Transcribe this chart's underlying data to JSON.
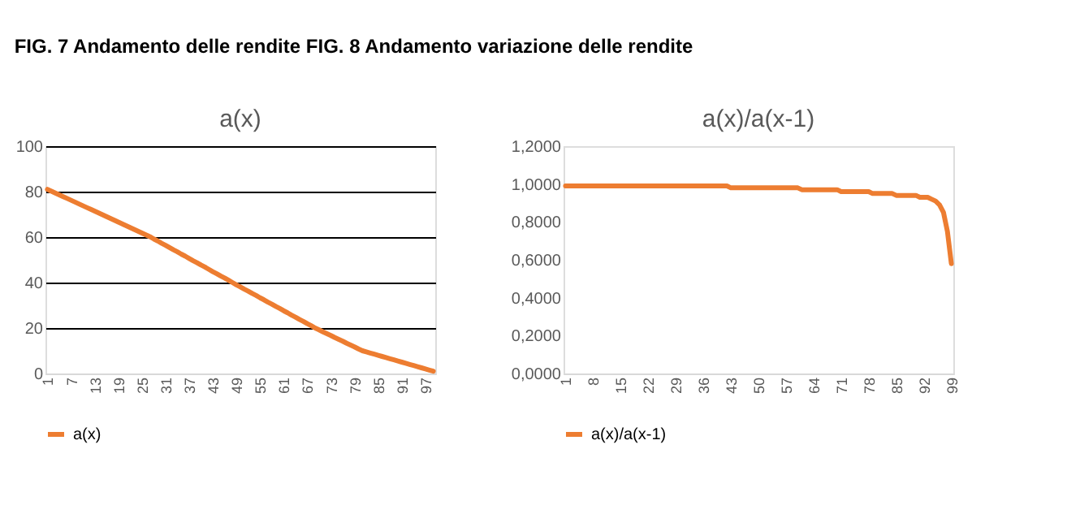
{
  "chart_data": [
    {
      "type": "line",
      "title": "a(x)",
      "annotations": [
        "FIG. 7 Andamento delle rendite FIG. 8 Andamento variazione delle rendite"
      ],
      "categories": [
        "1",
        null,
        null,
        null,
        null,
        null,
        "7",
        null,
        null,
        null,
        null,
        null,
        "13",
        null,
        null,
        null,
        null,
        null,
        "19",
        null,
        null,
        null,
        null,
        null,
        "25",
        null,
        null,
        null,
        null,
        null,
        "31",
        null,
        null,
        null,
        null,
        null,
        "37",
        null,
        null,
        null,
        null,
        null,
        "43",
        null,
        null,
        null,
        null,
        null,
        "49",
        null,
        null,
        null,
        null,
        null,
        "55",
        null,
        null,
        null,
        null,
        null,
        "61",
        null,
        null,
        null,
        null,
        null,
        "67",
        null,
        null,
        null,
        null,
        null,
        "73",
        null,
        null,
        null,
        null,
        null,
        "79",
        null,
        null,
        null,
        null,
        null,
        "85",
        null,
        null,
        null,
        null,
        null,
        "91",
        null,
        null,
        null,
        null,
        null,
        "97",
        null,
        null
      ],
      "series": [
        {
          "name": "a(x)",
          "color": "#ed7d31",
          "values": [
            81.0,
            80.2,
            79.4,
            78.6,
            77.8,
            77.0,
            76.2,
            75.4,
            74.6,
            73.8,
            73.0,
            72.2,
            71.4,
            70.6,
            69.8,
            69.0,
            68.2,
            67.4,
            66.6,
            65.8,
            65.0,
            64.2,
            63.4,
            62.6,
            61.8,
            61.0,
            60.2,
            59.2,
            58.3,
            57.3,
            56.4,
            55.4,
            54.4,
            53.5,
            52.5,
            51.6,
            50.6,
            49.6,
            48.7,
            47.7,
            46.8,
            45.8,
            44.8,
            43.9,
            42.9,
            42.0,
            41.0,
            40.0,
            39.0,
            38.1,
            37.1,
            36.2,
            35.2,
            34.3,
            33.3,
            32.4,
            31.4,
            30.5,
            29.5,
            28.6,
            27.6,
            26.7,
            25.7,
            24.8,
            23.8,
            22.9,
            21.9,
            21.0,
            20.0,
            19.2,
            18.3,
            17.5,
            16.7,
            15.8,
            15.0,
            14.2,
            13.3,
            12.5,
            11.7,
            10.8,
            10.0,
            9.5,
            9.0,
            8.5,
            8.0,
            7.5,
            7.0,
            6.5,
            6.0,
            5.5,
            5.0,
            4.5,
            4.0,
            3.5,
            3.0,
            2.5,
            2.0,
            1.5,
            1.0
          ]
        }
      ],
      "ylim": [
        0,
        100
      ],
      "yticks": [
        0,
        20,
        40,
        60,
        80,
        100
      ],
      "grid": "y",
      "legend": "bottom",
      "line_style": "solid"
    },
    {
      "type": "line",
      "title": "a(x)/a(x-1)",
      "categories": [
        "1",
        null,
        null,
        null,
        null,
        null,
        null,
        "8",
        null,
        null,
        null,
        null,
        null,
        null,
        "15",
        null,
        null,
        null,
        null,
        null,
        null,
        "22",
        null,
        null,
        null,
        null,
        null,
        null,
        "29",
        null,
        null,
        null,
        null,
        null,
        null,
        "36",
        null,
        null,
        null,
        null,
        null,
        null,
        "43",
        null,
        null,
        null,
        null,
        null,
        null,
        "50",
        null,
        null,
        null,
        null,
        null,
        null,
        "57",
        null,
        null,
        null,
        null,
        null,
        null,
        "64",
        null,
        null,
        null,
        null,
        null,
        null,
        "71",
        null,
        null,
        null,
        null,
        null,
        null,
        "78",
        null,
        null,
        null,
        null,
        null,
        null,
        "85",
        null,
        null,
        null,
        null,
        null,
        null,
        "92",
        null,
        null,
        null,
        null,
        null,
        null,
        "99"
      ],
      "series": [
        {
          "name": "a(x)/a(x-1)",
          "color": "#ed7d31",
          "values": [
            0.99,
            0.99,
            0.99,
            0.99,
            0.99,
            0.99,
            0.99,
            0.99,
            0.99,
            0.99,
            0.99,
            0.99,
            0.99,
            0.99,
            0.99,
            0.99,
            0.99,
            0.99,
            0.99,
            0.99,
            0.99,
            0.99,
            0.99,
            0.99,
            0.99,
            0.99,
            0.99,
            0.99,
            0.99,
            0.99,
            0.99,
            0.99,
            0.99,
            0.99,
            0.99,
            0.99,
            0.99,
            0.99,
            0.99,
            0.99,
            0.99,
            0.99,
            0.98,
            0.98,
            0.98,
            0.98,
            0.98,
            0.98,
            0.98,
            0.98,
            0.98,
            0.98,
            0.98,
            0.98,
            0.98,
            0.98,
            0.98,
            0.98,
            0.98,
            0.98,
            0.97,
            0.97,
            0.97,
            0.97,
            0.97,
            0.97,
            0.97,
            0.97,
            0.97,
            0.97,
            0.96,
            0.96,
            0.96,
            0.96,
            0.96,
            0.96,
            0.96,
            0.96,
            0.95,
            0.95,
            0.95,
            0.95,
            0.95,
            0.95,
            0.94,
            0.94,
            0.94,
            0.94,
            0.94,
            0.94,
            0.93,
            0.93,
            0.93,
            0.92,
            0.91,
            0.89,
            0.85,
            0.75,
            0.58
          ]
        }
      ],
      "ylim": [
        0,
        1.2
      ],
      "yticks": [
        {
          "value": 0,
          "label": "0,0000"
        },
        {
          "value": 0.2,
          "label": "0,2000"
        },
        {
          "value": 0.4,
          "label": "0,4000"
        },
        {
          "value": 0.6,
          "label": "0,6000"
        },
        {
          "value": 0.8,
          "label": "0,8000"
        },
        {
          "value": 1.0,
          "label": "1,0000"
        },
        {
          "value": 1.2,
          "label": "1,2000"
        }
      ],
      "grid": false,
      "legend": "bottom",
      "line_style": "solid"
    }
  ]
}
